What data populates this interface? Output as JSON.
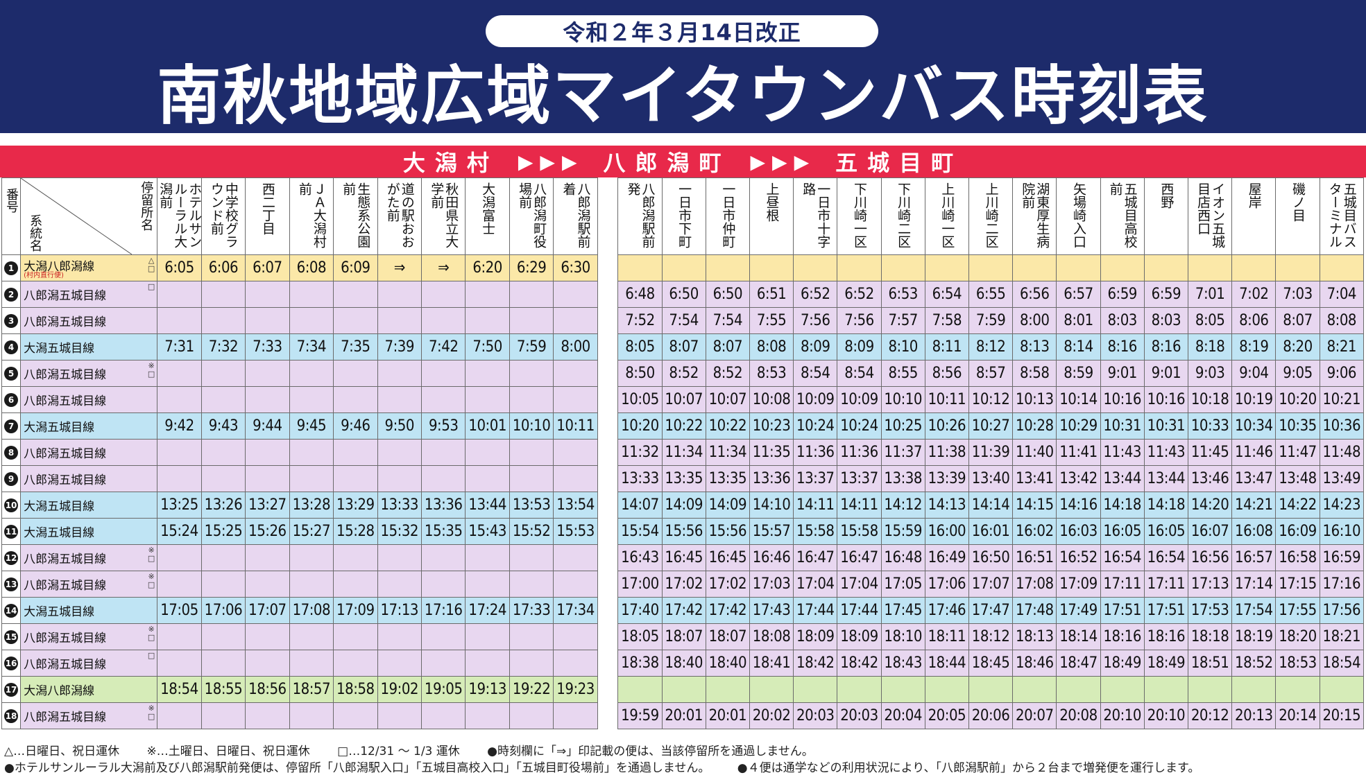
{
  "header": {
    "revision": "令和２年３月14日改正",
    "title": "南秋地域広域マイタウンバス時刻表"
  },
  "direction": {
    "places": [
      "大潟村",
      "八郎潟町",
      "五城目町"
    ],
    "arrow": "▶▶▶"
  },
  "columns": {
    "no_label": "番号",
    "stop_label": "停留所名",
    "route_label": "系統名",
    "stops_a": [
      "ホテルサンルーラル大潟前",
      "中学校グラウンド前",
      "西二丁目",
      "ＪＡ大潟村前",
      "生態系公園前",
      "道の駅おおがた前",
      "秋田県立大学前",
      "大潟富士",
      "八郎潟町役場前",
      "八郎潟駅前着"
    ],
    "stops_b": [
      "八郎潟駅前発",
      "一日市下町",
      "一日市仲町",
      "上昼根",
      "一日市十字路",
      "下川崎一区",
      "下川崎二区",
      "上川崎一区",
      "上川崎二区",
      "湖東厚生病院前",
      "矢場崎入口",
      "五城目高校前",
      "西野",
      "イオン五城目店西口",
      "屋岸",
      "磯ノ目",
      "五城目バスターミナル"
    ]
  },
  "rows": [
    {
      "no": "1",
      "route": "大潟八郎潟線",
      "sub": "(村内直行便)",
      "marks": "△\n□",
      "color": "yellow",
      "a": [
        "6:05",
        "6:06",
        "6:07",
        "6:08",
        "6:09",
        "⇒",
        "⇒",
        "6:20",
        "6:29",
        "6:30"
      ],
      "b": [
        "",
        "",
        "",
        "",
        "",
        "",
        "",
        "",
        "",
        "",
        "",
        "",
        "",
        "",
        "",
        "",
        ""
      ]
    },
    {
      "no": "2",
      "route": "八郎潟五城目線",
      "marks": "□",
      "color": "purple",
      "a": [
        "",
        "",
        "",
        "",
        "",
        "",
        "",
        "",
        "",
        ""
      ],
      "b": [
        "6:48",
        "6:50",
        "6:50",
        "6:51",
        "6:52",
        "6:52",
        "6:53",
        "6:54",
        "6:55",
        "6:56",
        "6:57",
        "6:59",
        "6:59",
        "7:01",
        "7:02",
        "7:03",
        "7:04"
      ]
    },
    {
      "no": "3",
      "route": "八郎潟五城目線",
      "marks": "",
      "color": "purple",
      "a": [
        "",
        "",
        "",
        "",
        "",
        "",
        "",
        "",
        "",
        ""
      ],
      "b": [
        "7:52",
        "7:54",
        "7:54",
        "7:55",
        "7:56",
        "7:56",
        "7:57",
        "7:58",
        "7:59",
        "8:00",
        "8:01",
        "8:03",
        "8:03",
        "8:05",
        "8:06",
        "8:07",
        "8:08"
      ]
    },
    {
      "no": "4",
      "route": "大潟五城目線",
      "marks": "",
      "color": "blue",
      "a": [
        "7:31",
        "7:32",
        "7:33",
        "7:34",
        "7:35",
        "7:39",
        "7:42",
        "7:50",
        "7:59",
        "8:00"
      ],
      "b": [
        "8:05",
        "8:07",
        "8:07",
        "8:08",
        "8:09",
        "8:09",
        "8:10",
        "8:11",
        "8:12",
        "8:13",
        "8:14",
        "8:16",
        "8:16",
        "8:18",
        "8:19",
        "8:20",
        "8:21"
      ]
    },
    {
      "no": "5",
      "route": "八郎潟五城目線",
      "marks": "※\n□",
      "color": "purple",
      "a": [
        "",
        "",
        "",
        "",
        "",
        "",
        "",
        "",
        "",
        ""
      ],
      "b": [
        "8:50",
        "8:52",
        "8:52",
        "8:53",
        "8:54",
        "8:54",
        "8:55",
        "8:56",
        "8:57",
        "8:58",
        "8:59",
        "9:01",
        "9:01",
        "9:03",
        "9:04",
        "9:05",
        "9:06"
      ]
    },
    {
      "no": "6",
      "route": "八郎潟五城目線",
      "marks": "",
      "color": "purple",
      "a": [
        "",
        "",
        "",
        "",
        "",
        "",
        "",
        "",
        "",
        ""
      ],
      "b": [
        "10:05",
        "10:07",
        "10:07",
        "10:08",
        "10:09",
        "10:09",
        "10:10",
        "10:11",
        "10:12",
        "10:13",
        "10:14",
        "10:16",
        "10:16",
        "10:18",
        "10:19",
        "10:20",
        "10:21"
      ]
    },
    {
      "no": "7",
      "route": "大潟五城目線",
      "marks": "",
      "color": "blue",
      "a": [
        "9:42",
        "9:43",
        "9:44",
        "9:45",
        "9:46",
        "9:50",
        "9:53",
        "10:01",
        "10:10",
        "10:11"
      ],
      "b": [
        "10:20",
        "10:22",
        "10:22",
        "10:23",
        "10:24",
        "10:24",
        "10:25",
        "10:26",
        "10:27",
        "10:28",
        "10:29",
        "10:31",
        "10:31",
        "10:33",
        "10:34",
        "10:35",
        "10:36"
      ]
    },
    {
      "no": "8",
      "route": "八郎潟五城目線",
      "marks": "",
      "color": "purple",
      "a": [
        "",
        "",
        "",
        "",
        "",
        "",
        "",
        "",
        "",
        ""
      ],
      "b": [
        "11:32",
        "11:34",
        "11:34",
        "11:35",
        "11:36",
        "11:36",
        "11:37",
        "11:38",
        "11:39",
        "11:40",
        "11:41",
        "11:43",
        "11:43",
        "11:45",
        "11:46",
        "11:47",
        "11:48"
      ]
    },
    {
      "no": "9",
      "route": "八郎潟五城目線",
      "marks": "",
      "color": "purple",
      "a": [
        "",
        "",
        "",
        "",
        "",
        "",
        "",
        "",
        "",
        ""
      ],
      "b": [
        "13:33",
        "13:35",
        "13:35",
        "13:36",
        "13:37",
        "13:37",
        "13:38",
        "13:39",
        "13:40",
        "13:41",
        "13:42",
        "13:44",
        "13:44",
        "13:46",
        "13:47",
        "13:48",
        "13:49"
      ]
    },
    {
      "no": "10",
      "route": "大潟五城目線",
      "marks": "",
      "color": "blue",
      "a": [
        "13:25",
        "13:26",
        "13:27",
        "13:28",
        "13:29",
        "13:33",
        "13:36",
        "13:44",
        "13:53",
        "13:54"
      ],
      "b": [
        "14:07",
        "14:09",
        "14:09",
        "14:10",
        "14:11",
        "14:11",
        "14:12",
        "14:13",
        "14:14",
        "14:15",
        "14:16",
        "14:18",
        "14:18",
        "14:20",
        "14:21",
        "14:22",
        "14:23"
      ]
    },
    {
      "no": "11",
      "route": "大潟五城目線",
      "marks": "",
      "color": "blue",
      "a": [
        "15:24",
        "15:25",
        "15:26",
        "15:27",
        "15:28",
        "15:32",
        "15:35",
        "15:43",
        "15:52",
        "15:53"
      ],
      "b": [
        "15:54",
        "15:56",
        "15:56",
        "15:57",
        "15:58",
        "15:58",
        "15:59",
        "16:00",
        "16:01",
        "16:02",
        "16:03",
        "16:05",
        "16:05",
        "16:07",
        "16:08",
        "16:09",
        "16:10"
      ]
    },
    {
      "no": "12",
      "route": "八郎潟五城目線",
      "marks": "※\n□",
      "color": "purple",
      "a": [
        "",
        "",
        "",
        "",
        "",
        "",
        "",
        "",
        "",
        ""
      ],
      "b": [
        "16:43",
        "16:45",
        "16:45",
        "16:46",
        "16:47",
        "16:47",
        "16:48",
        "16:49",
        "16:50",
        "16:51",
        "16:52",
        "16:54",
        "16:54",
        "16:56",
        "16:57",
        "16:58",
        "16:59"
      ]
    },
    {
      "no": "13",
      "route": "八郎潟五城目線",
      "marks": "※\n□",
      "color": "purple",
      "a": [
        "",
        "",
        "",
        "",
        "",
        "",
        "",
        "",
        "",
        ""
      ],
      "b": [
        "17:00",
        "17:02",
        "17:02",
        "17:03",
        "17:04",
        "17:04",
        "17:05",
        "17:06",
        "17:07",
        "17:08",
        "17:09",
        "17:11",
        "17:11",
        "17:13",
        "17:14",
        "17:15",
        "17:16"
      ]
    },
    {
      "no": "14",
      "route": "大潟五城目線",
      "marks": "",
      "color": "blue",
      "a": [
        "17:05",
        "17:06",
        "17:07",
        "17:08",
        "17:09",
        "17:13",
        "17:16",
        "17:24",
        "17:33",
        "17:34"
      ],
      "b": [
        "17:40",
        "17:42",
        "17:42",
        "17:43",
        "17:44",
        "17:44",
        "17:45",
        "17:46",
        "17:47",
        "17:48",
        "17:49",
        "17:51",
        "17:51",
        "17:53",
        "17:54",
        "17:55",
        "17:56"
      ]
    },
    {
      "no": "15",
      "route": "八郎潟五城目線",
      "marks": "※\n□",
      "color": "purple",
      "a": [
        "",
        "",
        "",
        "",
        "",
        "",
        "",
        "",
        "",
        ""
      ],
      "b": [
        "18:05",
        "18:07",
        "18:07",
        "18:08",
        "18:09",
        "18:09",
        "18:10",
        "18:11",
        "18:12",
        "18:13",
        "18:14",
        "18:16",
        "18:16",
        "18:18",
        "18:19",
        "18:20",
        "18:21"
      ]
    },
    {
      "no": "16",
      "route": "八郎潟五城目線",
      "marks": "□",
      "color": "purple",
      "a": [
        "",
        "",
        "",
        "",
        "",
        "",
        "",
        "",
        "",
        ""
      ],
      "b": [
        "18:38",
        "18:40",
        "18:40",
        "18:41",
        "18:42",
        "18:42",
        "18:43",
        "18:44",
        "18:45",
        "18:46",
        "18:47",
        "18:49",
        "18:49",
        "18:51",
        "18:52",
        "18:53",
        "18:54"
      ]
    },
    {
      "no": "17",
      "route": "大潟八郎潟線",
      "marks": "",
      "color": "green",
      "a": [
        "18:54",
        "18:55",
        "18:56",
        "18:57",
        "18:58",
        "19:02",
        "19:05",
        "19:13",
        "19:22",
        "19:23"
      ],
      "b": [
        "",
        "",
        "",
        "",
        "",
        "",
        "",
        "",
        "",
        "",
        "",
        "",
        "",
        "",
        "",
        "",
        ""
      ]
    },
    {
      "no": "18",
      "route": "八郎潟五城目線",
      "marks": "※\n□",
      "color": "purple",
      "a": [
        "",
        "",
        "",
        "",
        "",
        "",
        "",
        "",
        "",
        ""
      ],
      "b": [
        "19:59",
        "20:01",
        "20:01",
        "20:02",
        "20:03",
        "20:03",
        "20:04",
        "20:05",
        "20:06",
        "20:07",
        "20:08",
        "20:10",
        "20:10",
        "20:12",
        "20:13",
        "20:14",
        "20:15"
      ]
    }
  ],
  "notes": {
    "line1": [
      "△…日曜日、祝日運休",
      "※…土曜日、日曜日、祝日運休",
      "□…12/31 ～ 1/3 運休",
      "●時刻欄に「⇒」印記載の便は、当該停留所を通過しません。"
    ],
    "line2": [
      "●ホテルサンルーラル大潟前及び八郎潟駅前発便は、停留所「八郎潟駅入口」「五城目高校入口」「五城目町役場前」を通過しません。",
      "●４便は通学などの利用状況により、「八郎潟駅前」から２台まで増発便を運行します。"
    ]
  },
  "colors": {
    "header_bg": "#1d2b6b",
    "direction_bg": "#e8294a",
    "yellow": "#fbe8a8",
    "purple": "#e8d7f0",
    "blue": "#bfe4f4",
    "green": "#d6ecb8"
  }
}
